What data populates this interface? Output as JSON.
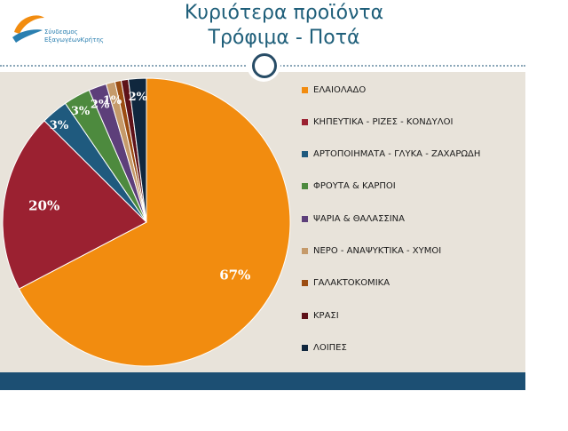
{
  "title": {
    "line1": "Κυριότερα προϊόντα",
    "line2": "Τρόφιμα - Ποτά"
  },
  "logo": {
    "line1": "Σύνδεσμος",
    "line2": "ΕξαγωγέωνΚρήτης"
  },
  "colors": {
    "panel": "#e8e3da",
    "footer": "#1c4f73",
    "title": "#1f5f7a"
  },
  "chart_data": {
    "type": "pie",
    "slices": [
      {
        "label": "ΕΛΑΙΟΛΑΔΟ",
        "value": 67,
        "data_label": "67%",
        "color": "#f28c0f"
      },
      {
        "label": "ΚΗΠΕΥΤΙΚΑ - ΡΙΖΕΣ - ΚΟΝΔΥΛΟΙ",
        "value": 20,
        "data_label": "20%",
        "color": "#9b2131"
      },
      {
        "label": "ΑΡΤΟΠΟΙΗΜΑΤΑ - ΓΛΥΚΑ - ΖΑΧΑΡΩΔΗ",
        "value": 3,
        "data_label": "3%",
        "color": "#1f5a7e"
      },
      {
        "label": "ΦΡΟΥΤΑ & ΚΑΡΠΟΙ",
        "value": 3,
        "data_label": "3%",
        "color": "#4d8a3e"
      },
      {
        "label": "ΨΑΡΙΑ & ΘΑΛΑΣΣΙΝΑ",
        "value": 2,
        "data_label": "2%",
        "color": "#5d3f7a"
      },
      {
        "label": "ΝΕΡΟ - ΑΝΑΨΥΚΤΙΚΑ - ΧΥΜΟΙ",
        "value": 1,
        "data_label": "1%",
        "color": "#c59a6a"
      },
      {
        "label": "ΓΑΛΑΚΤΟΚΟΜΙΚΑ",
        "value": 0.7,
        "data_label": "",
        "color": "#9c4d12"
      },
      {
        "label": "ΚΡΑΣΙ",
        "value": 0.8,
        "data_label": "",
        "color": "#5e1118"
      },
      {
        "label": "ΛΟΙΠΕΣ",
        "value": 2,
        "data_label": "2%",
        "color": "#10273e"
      }
    ],
    "legend_position": "right"
  }
}
